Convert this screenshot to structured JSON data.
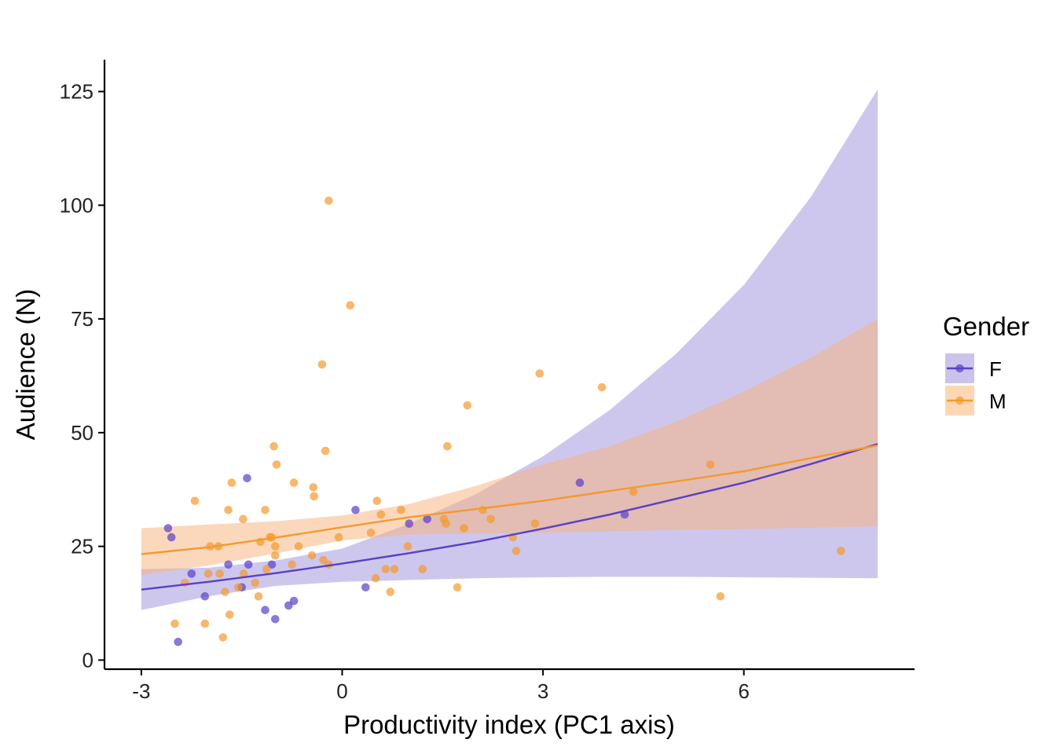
{
  "chart_data": {
    "type": "scatter",
    "xlabel": "Productivity index (PC1 axis)",
    "ylabel": "Audience (N)",
    "xlim": [
      -3.55,
      8.55
    ],
    "ylim": [
      -2,
      132
    ],
    "x_ticks": [
      -3,
      0,
      3,
      6
    ],
    "x_tick_labels": [
      "-3",
      "0",
      "3",
      "6"
    ],
    "y_ticks": [
      0,
      25,
      50,
      75,
      100,
      125
    ],
    "y_tick_labels": [
      "0",
      "25",
      "50",
      "75",
      "100",
      "125"
    ],
    "grid": false,
    "legend": {
      "title": "Gender",
      "position": "right"
    },
    "series": [
      {
        "name": "F",
        "color": "#5a3fc8",
        "band_color": "#cbc3ec",
        "points": [
          [
            -2.6,
            29
          ],
          [
            -2.55,
            27
          ],
          [
            -2.45,
            4
          ],
          [
            -2.25,
            19
          ],
          [
            -2.05,
            14
          ],
          [
            -1.7,
            21
          ],
          [
            -1.5,
            16
          ],
          [
            -1.42,
            40
          ],
          [
            -1.4,
            21
          ],
          [
            -1.15,
            11
          ],
          [
            -1.05,
            21
          ],
          [
            -1.0,
            9
          ],
          [
            -0.8,
            12
          ],
          [
            -0.72,
            13
          ],
          [
            0.2,
            33
          ],
          [
            0.35,
            16
          ],
          [
            1.0,
            30
          ],
          [
            1.27,
            31
          ],
          [
            3.55,
            39
          ],
          [
            4.22,
            32
          ]
        ],
        "fit_x": [
          -3,
          -2,
          -1,
          0,
          1,
          2,
          3,
          4,
          5,
          6,
          7,
          8
        ],
        "fit_y": [
          15.5,
          17.2,
          19.1,
          21.2,
          23.5,
          26.0,
          28.9,
          32.0,
          35.5,
          39.0,
          43.1,
          47.5
        ],
        "ci_lower": [
          11.0,
          14.0,
          16.3,
          17.2,
          17.6,
          18.0,
          18.2,
          18.3,
          18.3,
          18.2,
          18.1,
          18.0
        ],
        "ci_upper": [
          20.0,
          20.3,
          21.9,
          24.5,
          30.0,
          36.5,
          44.8,
          55.0,
          67.5,
          82.5,
          101.8,
          125.5
        ]
      },
      {
        "name": "M",
        "color": "#f39a2e",
        "band_color": "#fbd8b3",
        "points": [
          [
            -2.5,
            8
          ],
          [
            -2.35,
            17
          ],
          [
            -2.2,
            35
          ],
          [
            -2.05,
            8
          ],
          [
            -2.0,
            19
          ],
          [
            -1.97,
            25
          ],
          [
            -1.85,
            25
          ],
          [
            -1.83,
            19
          ],
          [
            -1.78,
            5
          ],
          [
            -1.75,
            15
          ],
          [
            -1.7,
            33
          ],
          [
            -1.68,
            10
          ],
          [
            -1.65,
            39
          ],
          [
            -1.55,
            16
          ],
          [
            -1.48,
            31
          ],
          [
            -1.47,
            19
          ],
          [
            -1.3,
            17
          ],
          [
            -1.25,
            14
          ],
          [
            -1.22,
            26
          ],
          [
            -1.15,
            33
          ],
          [
            -1.13,
            20
          ],
          [
            -1.08,
            27
          ],
          [
            -1.05,
            27
          ],
          [
            -1.02,
            47
          ],
          [
            -1.0,
            25
          ],
          [
            -1.0,
            23
          ],
          [
            -0.98,
            43
          ],
          [
            -0.75,
            21
          ],
          [
            -0.72,
            39
          ],
          [
            -0.65,
            25
          ],
          [
            -0.45,
            23
          ],
          [
            -0.43,
            38
          ],
          [
            -0.42,
            36
          ],
          [
            -0.3,
            65
          ],
          [
            -0.28,
            22
          ],
          [
            -0.25,
            46
          ],
          [
            -0.2,
            101
          ],
          [
            -0.2,
            21
          ],
          [
            -0.05,
            27
          ],
          [
            0.12,
            78
          ],
          [
            0.43,
            28
          ],
          [
            0.5,
            18
          ],
          [
            0.52,
            35
          ],
          [
            0.58,
            32
          ],
          [
            0.65,
            20
          ],
          [
            0.72,
            15
          ],
          [
            0.78,
            20
          ],
          [
            0.88,
            33
          ],
          [
            0.98,
            25
          ],
          [
            1.2,
            20
          ],
          [
            1.52,
            31
          ],
          [
            1.55,
            30
          ],
          [
            1.57,
            47
          ],
          [
            1.72,
            16
          ],
          [
            1.82,
            29
          ],
          [
            1.87,
            56
          ],
          [
            2.1,
            33
          ],
          [
            2.22,
            31
          ],
          [
            2.55,
            27
          ],
          [
            2.6,
            24
          ],
          [
            2.88,
            30
          ],
          [
            2.95,
            63
          ],
          [
            3.88,
            60
          ],
          [
            4.35,
            37
          ],
          [
            5.5,
            43
          ],
          [
            5.65,
            14
          ],
          [
            7.45,
            24
          ]
        ],
        "fit_x": [
          -3,
          -2,
          -1,
          0,
          1,
          2,
          3,
          4,
          5,
          6,
          7,
          8
        ],
        "fit_y": [
          23.3,
          24.8,
          26.9,
          29.2,
          31.4,
          33.2,
          35.0,
          37.2,
          39.3,
          41.5,
          44.4,
          47.2
        ],
        "ci_lower": [
          18.7,
          20.8,
          23.4,
          26.3,
          27.6,
          27.8,
          28.0,
          28.3,
          28.6,
          28.8,
          29.1,
          29.4
        ],
        "ci_upper": [
          29.0,
          29.8,
          30.5,
          31.8,
          34.3,
          38.3,
          43.0,
          47.0,
          52.5,
          59.0,
          66.5,
          75.0
        ]
      }
    ]
  }
}
